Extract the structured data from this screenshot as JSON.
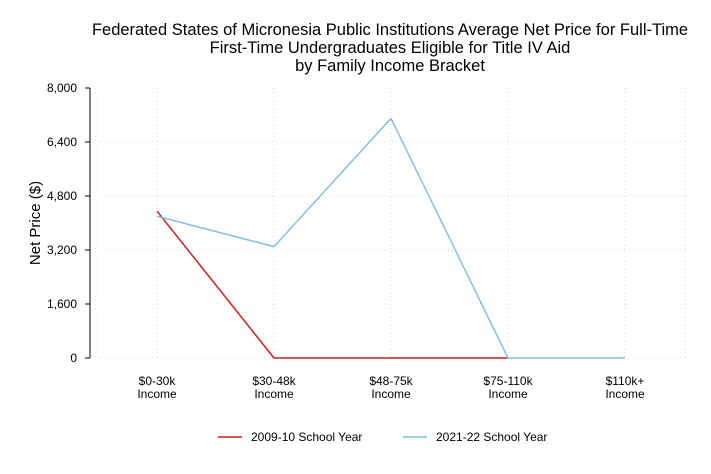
{
  "chart_data": {
    "type": "line",
    "title": [
      "Federated States of Micronesia Public Institutions Average Net Price for Full-Time",
      "First-Time Undergraduates Eligible for Title IV Aid",
      "by Family Income Bracket"
    ],
    "xlabel": "",
    "ylabel": "Net Price ($)",
    "categories": [
      [
        "$0-30k",
        "Income"
      ],
      [
        "$30-48k",
        "Income"
      ],
      [
        "$48-75k",
        "Income"
      ],
      [
        "$75-110k",
        "Income"
      ],
      [
        "$110k+",
        "Income"
      ]
    ],
    "ylim": [
      0,
      8000
    ],
    "yticks": [
      "0",
      "1,600",
      "3,200",
      "4,800",
      "6,400",
      "8,000"
    ],
    "ytick_values": [
      0,
      1600,
      3200,
      4800,
      6400,
      8000
    ],
    "grid": true,
    "legend_position": "bottom",
    "series": [
      {
        "name": "2009-10 School Year",
        "color": "#cc1f1f",
        "values": [
          4350,
          0,
          0,
          0,
          null
        ]
      },
      {
        "name": "2021-22 School Year",
        "color": "#86bfe3",
        "values": [
          4200,
          3300,
          7100,
          0,
          0
        ]
      }
    ]
  }
}
